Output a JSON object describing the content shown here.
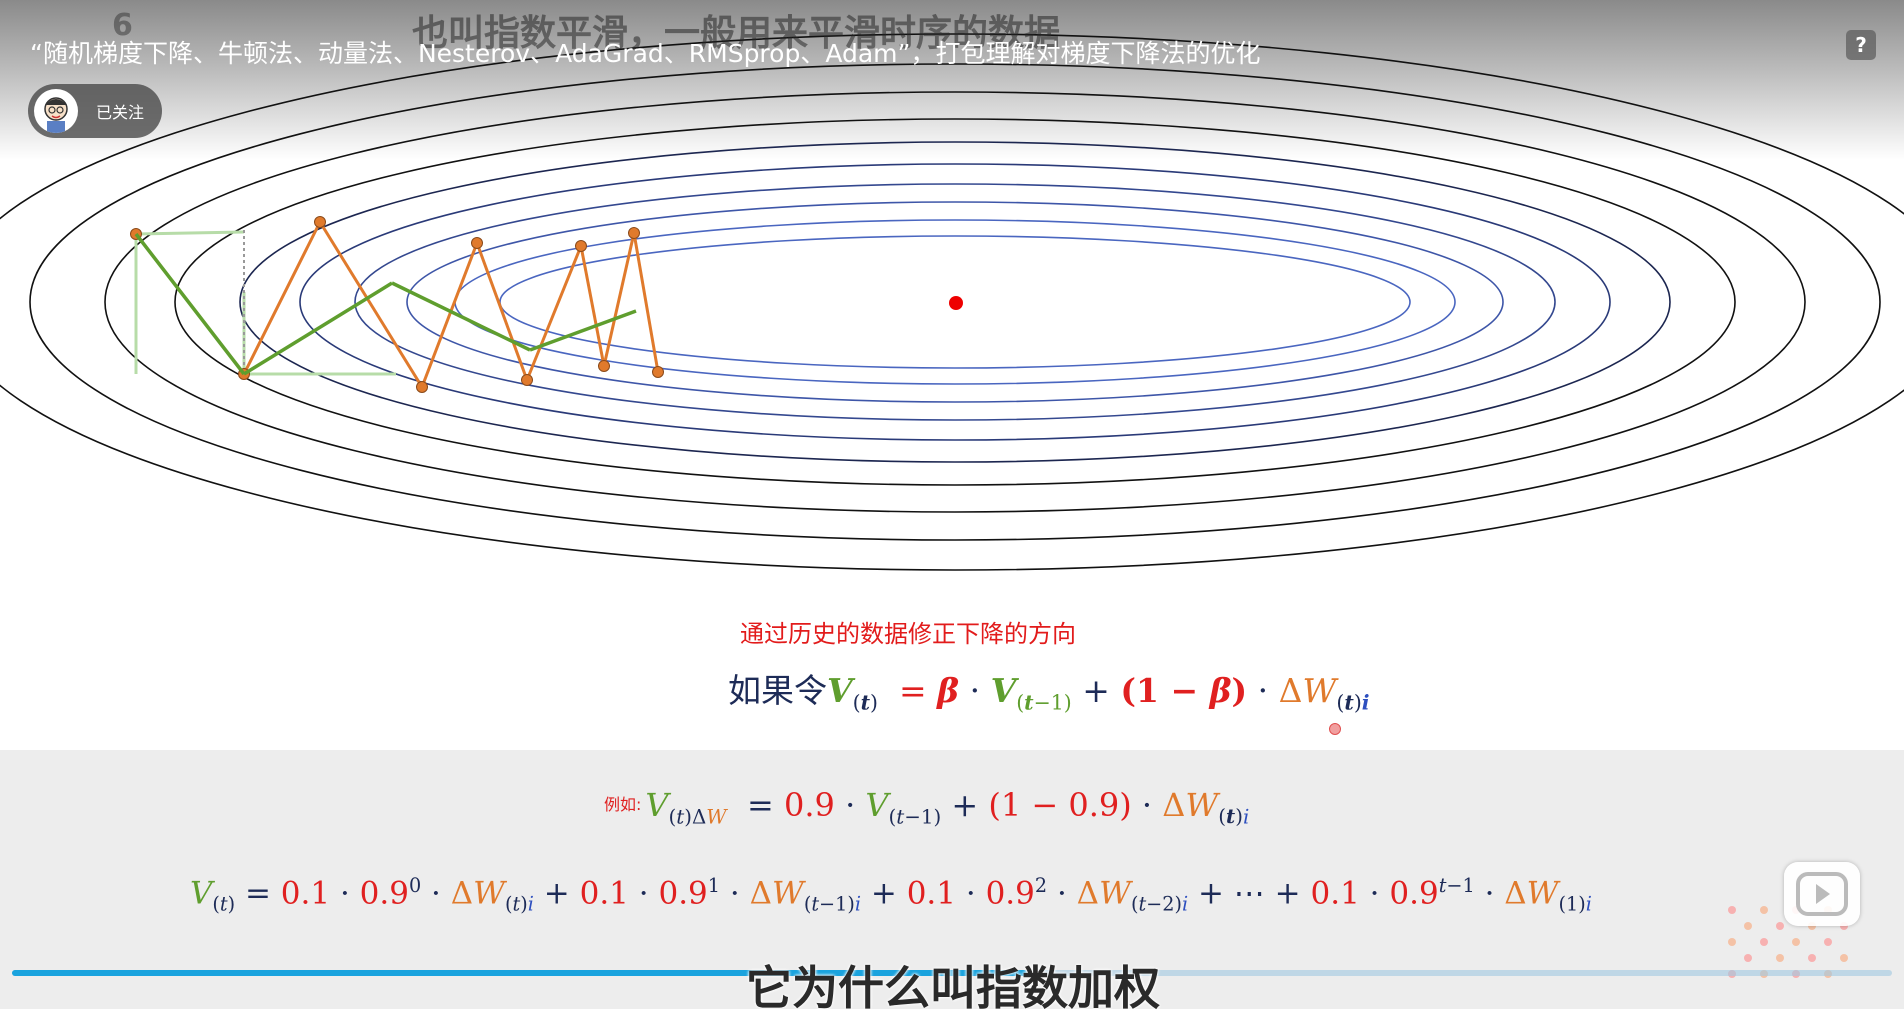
{
  "video": {
    "title": "“随机梯度下降、牛顿法、动量法、Nesterov、AdaGrad、RMSprop、Adam”，打包理解对梯度下降法的优化",
    "ghost_caption": "也叫指数平滑，一般用来平滑时序的数据",
    "ghost_number": "6",
    "follow_label": "已关注",
    "help_icon": "?",
    "subtitle": "它为什么叫指数加权",
    "progress": 0.54
  },
  "slide": {
    "note": "通过历史的数据修正下降的方向",
    "formula1_prefix": "如果令",
    "example_label": "例如:"
  },
  "colors": {
    "green": "#5f9e2e",
    "red": "#e02020",
    "orange": "#e07a2c",
    "navy": "#1d2b57",
    "blue": "#2d4fbf",
    "progress": "#1aa3de"
  },
  "icons": {
    "avatar": "cartoon-avatar",
    "help": "question-icon",
    "play": "play-icon",
    "logo": "watermark-logo"
  }
}
